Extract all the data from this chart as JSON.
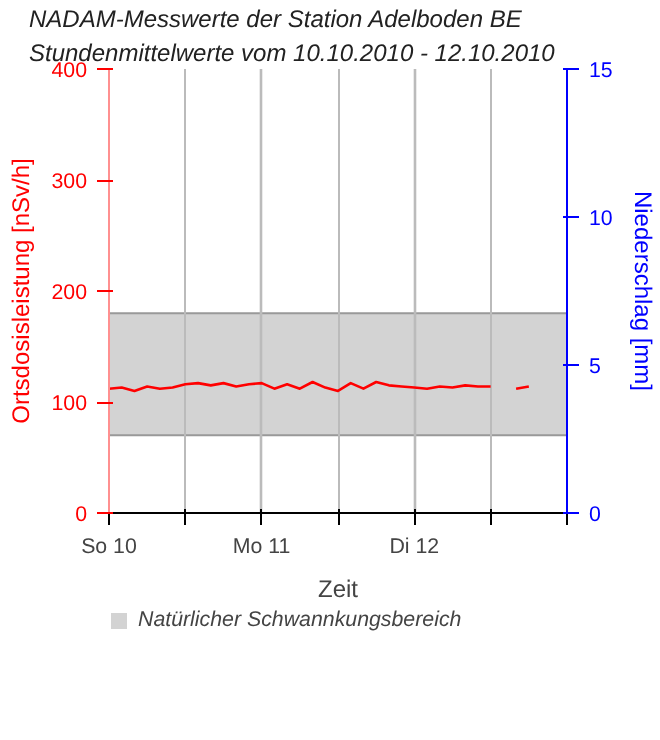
{
  "chart_data": {
    "type": "line",
    "title": "NADAM-Messwerte der Station Adelboden BE",
    "subtitle": "Stundenmittelwerte vom 10.10.2010 - 12.10.2010",
    "xlabel": "Zeit",
    "ylabel": "Ortsdosisleistung [nSv/h]",
    "y2label": "Niederschlag [mm]",
    "x": [
      "2010-10-10T00:00",
      "2010-10-10T02:00",
      "2010-10-10T04:00",
      "2010-10-10T06:00",
      "2010-10-10T08:00",
      "2010-10-10T10:00",
      "2010-10-10T12:00",
      "2010-10-10T14:00",
      "2010-10-10T16:00",
      "2010-10-10T18:00",
      "2010-10-10T20:00",
      "2010-10-10T22:00",
      "2010-10-11T00:00",
      "2010-10-11T02:00",
      "2010-10-11T04:00",
      "2010-10-11T06:00",
      "2010-10-11T08:00",
      "2010-10-11T10:00",
      "2010-10-11T12:00",
      "2010-10-11T14:00",
      "2010-10-11T16:00",
      "2010-10-11T18:00",
      "2010-10-11T20:00",
      "2010-10-11T22:00",
      "2010-10-12T00:00",
      "2010-10-12T02:00",
      "2010-10-12T04:00",
      "2010-10-12T06:00",
      "2010-10-12T08:00",
      "2010-10-12T10:00",
      "2010-10-12T12:00",
      "2010-10-12T14:00",
      "2010-10-12T16:00",
      "2010-10-12T18:00"
    ],
    "series": [
      {
        "color": "#ff0000",
        "values": [
          112,
          113,
          110,
          114,
          112,
          113,
          116,
          117,
          115,
          117,
          114,
          116,
          117,
          112,
          116,
          112,
          118,
          113,
          110,
          117,
          112,
          118,
          115,
          114,
          113,
          112,
          114,
          113,
          115,
          114,
          114,
          null,
          112,
          114
        ]
      }
    ],
    "xlim": [
      "2010-10-10T00:00",
      "2010-10-13T00:00"
    ],
    "xticks": [
      {
        "value": "2010-10-10T00:00",
        "label": "So 10"
      },
      {
        "value": "2010-10-10T12:00",
        "label": null
      },
      {
        "value": "2010-10-11T00:00",
        "label": "Mo 11"
      },
      {
        "value": "2010-10-11T12:00",
        "label": null
      },
      {
        "value": "2010-10-12T00:00",
        "label": "Di 12"
      },
      {
        "value": "2010-10-12T12:00",
        "label": null
      },
      {
        "value": "2010-10-13T00:00",
        "label": null
      }
    ],
    "ylim": [
      0,
      400
    ],
    "yticks": [
      0,
      100,
      200,
      300,
      400
    ],
    "y2lim": [
      0,
      15
    ],
    "y2ticks": [
      0,
      5,
      10,
      15
    ],
    "grid": "x",
    "bands": [
      {
        "axis": "y",
        "from": 70,
        "to": 180,
        "label": "Natürlicher Schwannkungsbereich",
        "color": "#d3d3d3"
      }
    ],
    "legend": "bottom"
  }
}
